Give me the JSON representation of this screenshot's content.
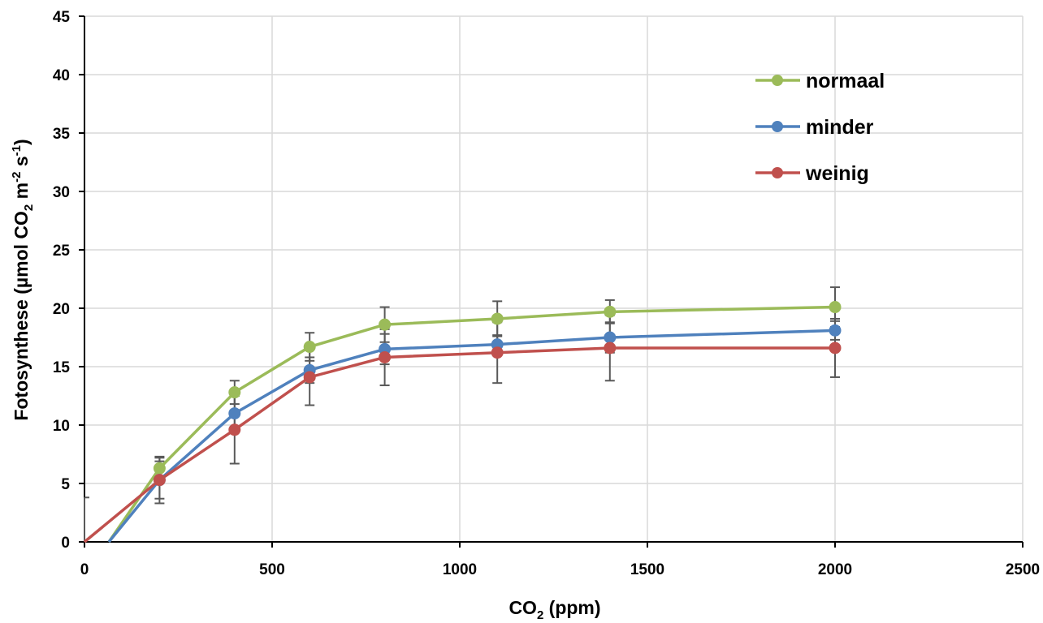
{
  "chart_data": {
    "type": "line",
    "title": "",
    "xlabel": "CO",
    "xlabel_sub": "2",
    "xlabel_suffix": " (ppm)",
    "ylabel": "Fotosynthese (µmol CO",
    "ylabel_sub": "2",
    "ylabel_mid": " m",
    "ylabel_sup1": "-2",
    "ylabel_mid2": " s",
    "ylabel_sup2": "-1",
    "ylabel_end": ")",
    "xlim": [
      0,
      2500
    ],
    "ylim": [
      0,
      45
    ],
    "xticks": [
      0,
      500,
      1000,
      1500,
      2000,
      2500
    ],
    "yticks": [
      0,
      5,
      10,
      15,
      20,
      25,
      30,
      35,
      40,
      45
    ],
    "grid": true,
    "legend": "top-right",
    "series": [
      {
        "name": "normaal",
        "color": "#9bbb59",
        "line_x": [
          65,
          200,
          400,
          600,
          800,
          1100,
          1400,
          2000
        ],
        "line_y": [
          0,
          6.3,
          12.8,
          16.7,
          18.6,
          19.1,
          19.7,
          20.1
        ],
        "x": [
          200,
          400,
          600,
          800,
          1100,
          1400,
          2000
        ],
        "y": [
          6.3,
          12.8,
          16.7,
          18.6,
          19.1,
          19.7,
          20.1
        ],
        "err": [
          0.9,
          1.0,
          1.2,
          1.5,
          1.5,
          1.0,
          1.7
        ]
      },
      {
        "name": "minder",
        "color": "#4f81bd",
        "line_x": [
          65,
          200,
          400,
          600,
          800,
          1100,
          1400,
          2000
        ],
        "line_y": [
          0,
          5.3,
          11.0,
          14.7,
          16.5,
          16.9,
          17.5,
          18.1
        ],
        "x": [
          200,
          400,
          600,
          800,
          1100,
          1400,
          2000
        ],
        "y": [
          5.3,
          11.0,
          14.7,
          16.5,
          16.9,
          17.5,
          18.1
        ],
        "err": [
          1.6,
          1.5,
          1.1,
          1.3,
          0.8,
          1.3,
          0.8
        ]
      },
      {
        "name": "weinig",
        "color": "#c0504d",
        "line_x": [
          0,
          200,
          400,
          600,
          800,
          1100,
          1400,
          2000
        ],
        "line_y": [
          0,
          5.3,
          9.6,
          14.1,
          15.8,
          16.2,
          16.6,
          16.6
        ],
        "x": [
          200,
          400,
          600,
          800,
          1100,
          1400,
          2000
        ],
        "y": [
          5.3,
          9.6,
          14.1,
          15.8,
          16.2,
          16.6,
          16.6
        ],
        "err": [
          2.0,
          2.9,
          2.4,
          2.4,
          2.6,
          2.8,
          2.5
        ]
      }
    ],
    "extra_errorbar": {
      "x": 0,
      "y": 0,
      "err": 3.8
    }
  }
}
